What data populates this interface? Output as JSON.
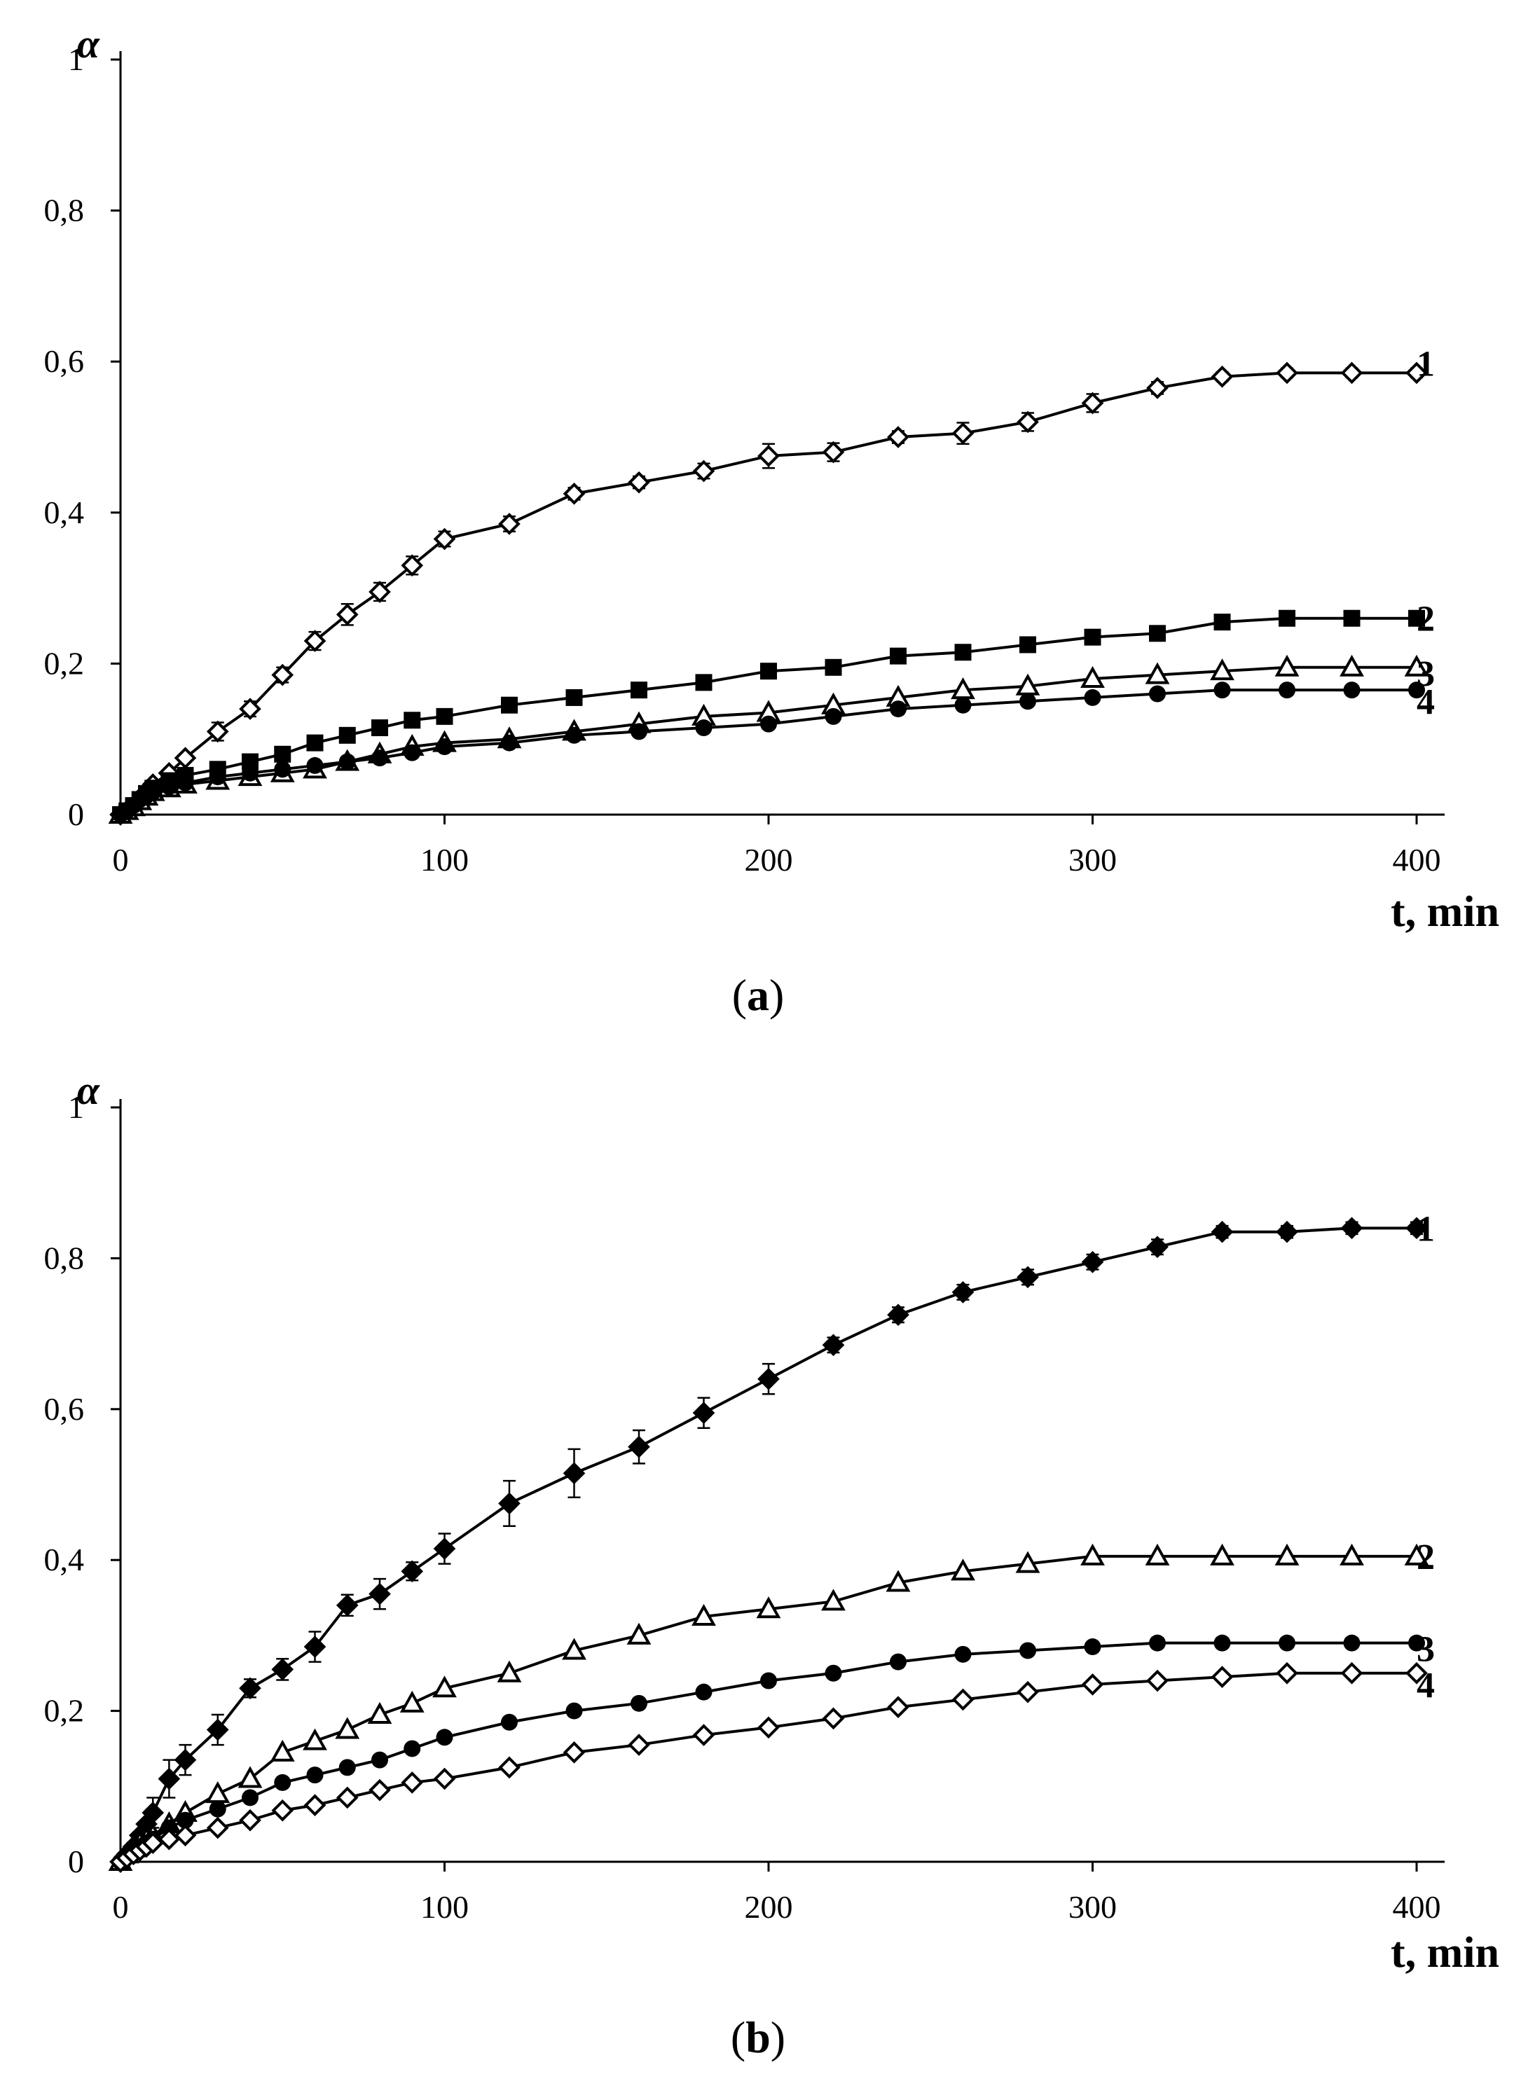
{
  "chart_data": [
    {
      "panel": "(a)",
      "panel_letter": "a",
      "type": "line",
      "xlabel": "t, min",
      "ylabel": "α",
      "xlim": [
        0,
        400
      ],
      "ylim": [
        0,
        1
      ],
      "xticks": [
        0,
        100,
        200,
        300,
        400
      ],
      "yticks": [
        0,
        0.2,
        0.4,
        0.6,
        0.8,
        1
      ],
      "ytick_labels": [
        "0",
        "0,2",
        "0,4",
        "0,6",
        "0,8",
        "1"
      ],
      "xtick_labels": [
        "0",
        "100",
        "200",
        "300",
        "400"
      ],
      "x": [
        0,
        2,
        4,
        6,
        8,
        10,
        15,
        20,
        30,
        40,
        50,
        60,
        70,
        80,
        90,
        100,
        120,
        140,
        160,
        180,
        200,
        220,
        240,
        260,
        280,
        300,
        320,
        340,
        360,
        380,
        400
      ],
      "series": [
        {
          "name": "1",
          "marker": "diamond-open",
          "values": [
            0,
            0.005,
            0.01,
            0.02,
            0.03,
            0.04,
            0.055,
            0.075,
            0.11,
            0.14,
            0.185,
            0.23,
            0.265,
            0.295,
            0.33,
            0.365,
            0.385,
            0.425,
            0.44,
            0.455,
            0.475,
            0.48,
            0.5,
            0.505,
            0.52,
            0.545,
            0.565,
            0.58,
            0.585,
            0.585,
            0.585
          ],
          "errors": [
            0,
            0,
            0,
            0,
            0,
            0,
            0,
            0,
            0.012,
            0.01,
            0.01,
            0.012,
            0.014,
            0.012,
            0.012,
            0.01,
            0.01,
            0.008,
            0.008,
            0.01,
            0.016,
            0.012,
            0.008,
            0.014,
            0.012,
            0.012,
            0.008,
            0.006,
            0.006,
            0.006,
            0.006
          ]
        },
        {
          "name": "2",
          "marker": "square-filled",
          "values": [
            0,
            0.005,
            0.012,
            0.02,
            0.028,
            0.035,
            0.045,
            0.052,
            0.06,
            0.07,
            0.08,
            0.095,
            0.105,
            0.115,
            0.125,
            0.13,
            0.145,
            0.155,
            0.165,
            0.175,
            0.19,
            0.195,
            0.21,
            0.215,
            0.225,
            0.235,
            0.24,
            0.255,
            0.26,
            0.26,
            0.26
          ],
          "errors": []
        },
        {
          "name": "3",
          "marker": "triangle-open",
          "values": [
            0,
            0.005,
            0.01,
            0.018,
            0.024,
            0.03,
            0.035,
            0.04,
            0.045,
            0.05,
            0.055,
            0.06,
            0.07,
            0.08,
            0.09,
            0.095,
            0.1,
            0.11,
            0.12,
            0.13,
            0.135,
            0.145,
            0.155,
            0.165,
            0.17,
            0.18,
            0.185,
            0.19,
            0.195,
            0.195,
            0.195
          ],
          "errors": []
        },
        {
          "name": "4",
          "marker": "circle-filled",
          "values": [
            0,
            0.005,
            0.012,
            0.02,
            0.025,
            0.03,
            0.037,
            0.042,
            0.05,
            0.055,
            0.06,
            0.065,
            0.07,
            0.075,
            0.082,
            0.09,
            0.095,
            0.105,
            0.11,
            0.115,
            0.12,
            0.13,
            0.14,
            0.145,
            0.15,
            0.155,
            0.16,
            0.165,
            0.165,
            0.165,
            0.165
          ],
          "errors": []
        }
      ]
    },
    {
      "panel": "(b)",
      "panel_letter": "b",
      "type": "line",
      "xlabel": "t, min",
      "ylabel": "α",
      "xlim": [
        0,
        400
      ],
      "ylim": [
        0,
        1
      ],
      "xticks": [
        0,
        100,
        200,
        300,
        400
      ],
      "yticks": [
        0,
        0.2,
        0.4,
        0.6,
        0.8,
        1
      ],
      "ytick_labels": [
        "0",
        "0,2",
        "0,4",
        "0,6",
        "0,8",
        "1"
      ],
      "xtick_labels": [
        "0",
        "100",
        "200",
        "300",
        "400"
      ],
      "x": [
        0,
        2,
        4,
        6,
        8,
        10,
        15,
        20,
        30,
        40,
        50,
        60,
        70,
        80,
        90,
        100,
        120,
        140,
        160,
        180,
        200,
        220,
        240,
        260,
        280,
        300,
        320,
        340,
        360,
        380,
        400
      ],
      "series": [
        {
          "name": "1",
          "marker": "diamond-filled",
          "values": [
            0,
            0.01,
            0.02,
            0.035,
            0.05,
            0.065,
            0.11,
            0.135,
            0.175,
            0.23,
            0.255,
            0.285,
            0.34,
            0.355,
            0.385,
            0.415,
            0.475,
            0.515,
            0.55,
            0.595,
            0.64,
            0.685,
            0.725,
            0.755,
            0.775,
            0.795,
            0.815,
            0.835,
            0.835,
            0.84,
            0.84
          ],
          "errors": [
            0,
            0,
            0,
            0,
            0,
            0.02,
            0.025,
            0.02,
            0.02,
            0.012,
            0.014,
            0.02,
            0.014,
            0.02,
            0.012,
            0.02,
            0.03,
            0.032,
            0.022,
            0.02,
            0.02,
            0.01,
            0.01,
            0.01,
            0.01,
            0.01,
            0.01,
            0.008,
            0.008,
            0.008,
            0.008
          ]
        },
        {
          "name": "2",
          "marker": "triangle-open",
          "values": [
            0,
            0.01,
            0.018,
            0.025,
            0.03,
            0.035,
            0.05,
            0.065,
            0.09,
            0.11,
            0.145,
            0.16,
            0.175,
            0.195,
            0.21,
            0.23,
            0.25,
            0.28,
            0.3,
            0.325,
            0.335,
            0.345,
            0.37,
            0.385,
            0.395,
            0.405,
            0.405,
            0.405,
            0.405,
            0.405,
            0.405
          ],
          "errors": []
        },
        {
          "name": "3",
          "marker": "circle-filled",
          "values": [
            0,
            0.008,
            0.015,
            0.02,
            0.025,
            0.03,
            0.045,
            0.055,
            0.07,
            0.085,
            0.105,
            0.115,
            0.125,
            0.135,
            0.15,
            0.165,
            0.185,
            0.2,
            0.21,
            0.225,
            0.24,
            0.25,
            0.265,
            0.275,
            0.28,
            0.285,
            0.29,
            0.29,
            0.29,
            0.29,
            0.29
          ],
          "errors": []
        },
        {
          "name": "4",
          "marker": "diamond-open",
          "values": [
            0,
            0.005,
            0.01,
            0.015,
            0.02,
            0.025,
            0.03,
            0.035,
            0.045,
            0.055,
            0.068,
            0.075,
            0.085,
            0.095,
            0.105,
            0.11,
            0.125,
            0.145,
            0.155,
            0.168,
            0.178,
            0.19,
            0.205,
            0.215,
            0.225,
            0.235,
            0.24,
            0.245,
            0.25,
            0.25,
            0.25
          ],
          "errors": []
        }
      ]
    }
  ]
}
